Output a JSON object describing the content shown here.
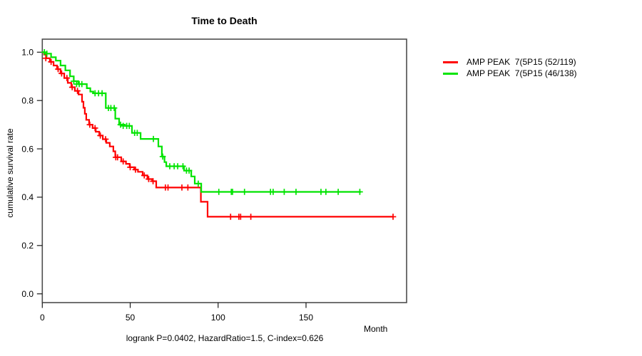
{
  "chart": {
    "title": "Time to Death",
    "xlabel": "Month",
    "ylabel": "cumulative survival rate",
    "annotation": "logrank P=0.0402, HazardRatio=1.5, C-index=0.626"
  },
  "chart_data": {
    "type": "line",
    "subtype": "kaplan-meier-step",
    "title": "Time to Death",
    "xlabel": "Month",
    "ylabel": "cumulative survival rate",
    "annotation": "logrank P=0.0402, HazardRatio=1.5, C-index=0.626",
    "xlim": [
      0,
      207
    ],
    "ylim": [
      0.0,
      1.05
    ],
    "x_ticks": [
      0,
      50,
      100,
      150
    ],
    "x_tick_labels": [
      "0",
      "50",
      "100",
      "150"
    ],
    "y_ticks": [
      0.0,
      0.2,
      0.4,
      0.6,
      0.8,
      1.0
    ],
    "y_tick_labels": [
      "0.0",
      "0.2",
      "0.4",
      "0.6",
      "0.8",
      "1.0"
    ],
    "grid": false,
    "legend_position": "right-outside",
    "series": [
      {
        "name": "AMP PEAK  7(5P15 (52/119)",
        "color": "#ff0000",
        "points": [
          [
            0,
            1.0
          ],
          [
            1,
            0.99
          ],
          [
            2.3,
            0.975
          ],
          [
            4.3,
            0.96
          ],
          [
            6.4,
            0.945
          ],
          [
            8.4,
            0.93
          ],
          [
            10.4,
            0.912
          ],
          [
            12.5,
            0.893
          ],
          [
            14.5,
            0.873
          ],
          [
            16.5,
            0.855
          ],
          [
            18.5,
            0.84
          ],
          [
            20.6,
            0.825
          ],
          [
            22.6,
            0.795
          ],
          [
            23.4,
            0.77
          ],
          [
            24.2,
            0.745
          ],
          [
            25.0,
            0.72
          ],
          [
            26.6,
            0.7
          ],
          [
            28.6,
            0.686
          ],
          [
            30.4,
            0.671
          ],
          [
            32.4,
            0.655
          ],
          [
            34.4,
            0.64
          ],
          [
            36.4,
            0.625
          ],
          [
            38.4,
            0.61
          ],
          [
            40.4,
            0.59
          ],
          [
            41.5,
            0.565
          ],
          [
            44.9,
            0.548
          ],
          [
            47.6,
            0.538
          ],
          [
            49.7,
            0.524
          ],
          [
            52.3,
            0.514
          ],
          [
            54.4,
            0.505
          ],
          [
            57.1,
            0.49
          ],
          [
            59.8,
            0.475
          ],
          [
            62.5,
            0.466
          ],
          [
            64.8,
            0.44
          ],
          [
            90.2,
            0.381
          ],
          [
            94.0,
            0.319
          ],
          [
            199.5,
            0.319
          ]
        ],
        "censors": [
          [
            2,
            0.975
          ],
          [
            5,
            0.96
          ],
          [
            9,
            0.93
          ],
          [
            11,
            0.912
          ],
          [
            14,
            0.893
          ],
          [
            17,
            0.855
          ],
          [
            20,
            0.84
          ],
          [
            27,
            0.7
          ],
          [
            30,
            0.686
          ],
          [
            33,
            0.655
          ],
          [
            36,
            0.64
          ],
          [
            41.8,
            0.565
          ],
          [
            42.8,
            0.565
          ],
          [
            46,
            0.548
          ],
          [
            50,
            0.524
          ],
          [
            53,
            0.514
          ],
          [
            58,
            0.49
          ],
          [
            60.5,
            0.475
          ],
          [
            63,
            0.466
          ],
          [
            70,
            0.44
          ],
          [
            71.5,
            0.44
          ],
          [
            79.4,
            0.44
          ],
          [
            82.8,
            0.44
          ],
          [
            107.1,
            0.319
          ],
          [
            111.8,
            0.319
          ],
          [
            112.8,
            0.319
          ],
          [
            118.6,
            0.319
          ],
          [
            199.5,
            0.319
          ]
        ]
      },
      {
        "name": "AMP PEAK  7(5P15 (46/138)",
        "color": "#00e400",
        "points": [
          [
            0,
            1.0
          ],
          [
            1.6,
            0.994
          ],
          [
            5,
            0.979
          ],
          [
            7.7,
            0.965
          ],
          [
            10.4,
            0.945
          ],
          [
            13.1,
            0.925
          ],
          [
            15.8,
            0.9
          ],
          [
            17.9,
            0.88
          ],
          [
            20.5,
            0.868
          ],
          [
            25.3,
            0.851
          ],
          [
            27.3,
            0.837
          ],
          [
            29,
            0.83
          ],
          [
            36.1,
            0.769
          ],
          [
            41.5,
            0.725
          ],
          [
            43.7,
            0.7
          ],
          [
            47,
            0.695
          ],
          [
            51,
            0.666
          ],
          [
            55.9,
            0.641
          ],
          [
            66,
            0.61
          ],
          [
            68,
            0.568
          ],
          [
            69.5,
            0.545
          ],
          [
            70.5,
            0.528
          ],
          [
            80.6,
            0.51
          ],
          [
            84.7,
            0.486
          ],
          [
            86.7,
            0.456
          ],
          [
            90.4,
            0.422
          ],
          [
            181.2,
            0.422
          ]
        ],
        "censors": [
          [
            1.2,
            1.0
          ],
          [
            2.6,
            0.994
          ],
          [
            17.9,
            0.88
          ],
          [
            19.5,
            0.868
          ],
          [
            21,
            0.868
          ],
          [
            22.5,
            0.868
          ],
          [
            30,
            0.83
          ],
          [
            32,
            0.83
          ],
          [
            34,
            0.83
          ],
          [
            37.6,
            0.769
          ],
          [
            39,
            0.769
          ],
          [
            40.9,
            0.769
          ],
          [
            44.5,
            0.7
          ],
          [
            46,
            0.695
          ],
          [
            48,
            0.695
          ],
          [
            49.5,
            0.695
          ],
          [
            52.5,
            0.666
          ],
          [
            54,
            0.666
          ],
          [
            63.2,
            0.641
          ],
          [
            68.5,
            0.568
          ],
          [
            72.5,
            0.528
          ],
          [
            75,
            0.528
          ],
          [
            77,
            0.528
          ],
          [
            80,
            0.528
          ],
          [
            82,
            0.51
          ],
          [
            83.5,
            0.51
          ],
          [
            88.7,
            0.456
          ],
          [
            100.4,
            0.422
          ],
          [
            107.5,
            0.422
          ],
          [
            108.2,
            0.422
          ],
          [
            115,
            0.422
          ],
          [
            129.8,
            0.422
          ],
          [
            131.3,
            0.422
          ],
          [
            137.6,
            0.422
          ],
          [
            144.3,
            0.422
          ],
          [
            158.5,
            0.422
          ],
          [
            161.3,
            0.422
          ],
          [
            168.3,
            0.422
          ],
          [
            180.6,
            0.422
          ]
        ]
      }
    ]
  },
  "colors": {
    "series_red": "#ff0000",
    "series_green": "#00e400",
    "plot_border": "#4d4d4d",
    "tick": "#1a1a1a",
    "text": "#000000",
    "background": "#ffffff"
  }
}
